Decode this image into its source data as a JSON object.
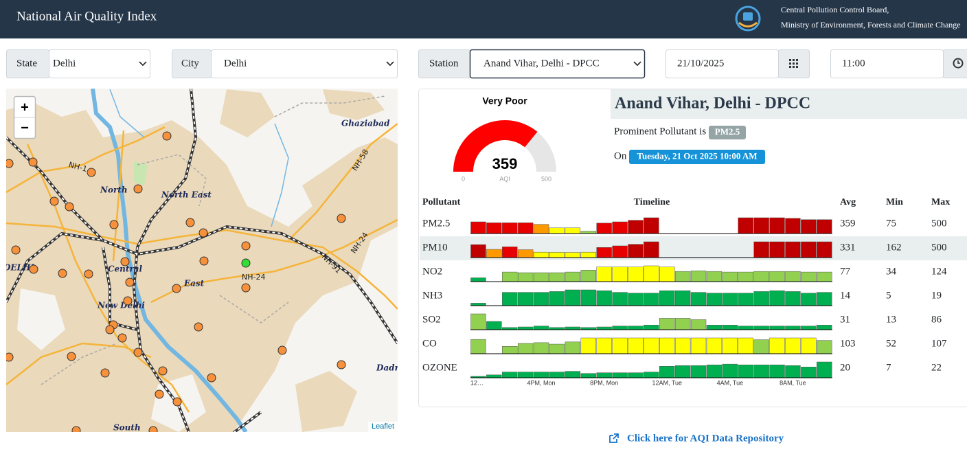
{
  "header": {
    "title": "National Air Quality Index",
    "org_line1": "Central Pollution Control Board,",
    "org_line2": "Ministry of Environment, Forests and Climate Change"
  },
  "filters": {
    "state_label": "State",
    "state": "Delhi",
    "city_label": "City",
    "city": "Delhi",
    "station_label": "Station",
    "station": "Anand Vihar, Delhi - DPCC",
    "date": "21/10/2025",
    "time": "11:00"
  },
  "map": {
    "zoom_in": "+",
    "zoom_out": "−",
    "attribution": "Leaflet",
    "labels": [
      "Ghaziabad",
      "North",
      "North East",
      "DELHI",
      "Central",
      "East",
      "New Delhi",
      "Dadri",
      "South",
      "NH-1",
      "NH-58",
      "NH-24",
      "NH-91",
      "NH-24"
    ]
  },
  "chart_data": {
    "type": "gauge",
    "title": "Very Poor",
    "value": 359,
    "label": "AQI",
    "ylim": [
      0,
      500
    ],
    "yticks": [
      0,
      500
    ],
    "color": "#ff0000",
    "track_color": "#e6e6e6"
  },
  "station": {
    "name": "Anand Vihar, Delhi - DPCC",
    "prominent_label": "Prominent Pollutant is",
    "prominent": "PM2.5",
    "on_label": "On",
    "datetime": "Tuesday, 21 Oct 2025 10:00 AM"
  },
  "table": {
    "headers": [
      "Pollutant",
      "Timeline",
      "Avg",
      "Min",
      "Max"
    ],
    "timeline_labels": [
      "12…",
      "4PM, Mon",
      "8PM, Mon",
      "12AM, Tue",
      "4AM, Tue",
      "8AM, Tue"
    ],
    "rows": [
      {
        "name": "PM2.5",
        "avg": 359,
        "min": 75,
        "max": 500,
        "values": [
          370,
          340,
          340,
          340,
          290,
          180,
          180,
          75,
          330,
          370,
          420,
          500,
          null,
          null,
          null,
          null,
          null,
          500,
          500,
          500,
          480,
          440,
          440
        ],
        "colors": [
          "#e60000",
          "#e60000",
          "#e60000",
          "#e60000",
          "#ff9900",
          "#ffff00",
          "#ffff00",
          "#92d050",
          "#e60000",
          "#e60000",
          "#c00000",
          "#c00000",
          null,
          null,
          null,
          null,
          null,
          "#c00000",
          "#c00000",
          "#c00000",
          "#c00000",
          "#c00000",
          "#c00000"
        ]
      },
      {
        "name": "PM10",
        "avg": 331,
        "min": 162,
        "max": 500,
        "values": [
          410,
          260,
          340,
          250,
          170,
          165,
          162,
          170,
          320,
          370,
          420,
          500,
          null,
          null,
          null,
          null,
          null,
          null,
          500,
          500,
          500,
          500,
          500
        ],
        "colors": [
          "#c00000",
          "#ff9900",
          "#e60000",
          "#ff9900",
          "#ffff00",
          "#ffff00",
          "#ffff00",
          "#ffff00",
          "#e60000",
          "#e60000",
          "#c00000",
          "#c00000",
          null,
          null,
          null,
          null,
          null,
          null,
          "#c00000",
          "#c00000",
          "#c00000",
          "#c00000",
          "#c00000"
        ]
      },
      {
        "name": "NO2",
        "avg": 77,
        "min": 34,
        "max": 124,
        "values": [
          30,
          null,
          75,
          70,
          70,
          70,
          75,
          90,
          115,
          115,
          115,
          124,
          115,
          80,
          85,
          80,
          75,
          75,
          80,
          80,
          80,
          75,
          75
        ],
        "colors": [
          "#00b050",
          null,
          "#92d050",
          "#92d050",
          "#92d050",
          "#92d050",
          "#92d050",
          "#92d050",
          "#ffff00",
          "#ffff00",
          "#ffff00",
          "#ffff00",
          "#ffff00",
          "#92d050",
          "#92d050",
          "#92d050",
          "#92d050",
          "#92d050",
          "#92d050",
          "#92d050",
          "#92d050",
          "#92d050",
          "#92d050"
        ]
      },
      {
        "name": "NH3",
        "avg": 14,
        "min": 5,
        "max": 19,
        "values": [
          3,
          null,
          16,
          16,
          16,
          17,
          19,
          19,
          18,
          16,
          15,
          15,
          18,
          18,
          16,
          15,
          15,
          15,
          17,
          18,
          17,
          15,
          16
        ],
        "colors": [
          "#00b050",
          null,
          "#00b050",
          "#00b050",
          "#00b050",
          "#00b050",
          "#00b050",
          "#00b050",
          "#00b050",
          "#00b050",
          "#00b050",
          "#00b050",
          "#00b050",
          "#00b050",
          "#00b050",
          "#00b050",
          "#00b050",
          "#00b050",
          "#00b050",
          "#00b050",
          "#00b050",
          "#00b050",
          "#00b050"
        ]
      },
      {
        "name": "SO2",
        "avg": 31,
        "min": 13,
        "max": 86,
        "values": [
          86,
          45,
          12,
          15,
          20,
          12,
          15,
          12,
          15,
          20,
          20,
          25,
          62,
          62,
          55,
          25,
          25,
          20,
          20,
          20,
          20,
          20,
          25
        ],
        "colors": [
          "#92d050",
          "#00b050",
          "#00b050",
          "#00b050",
          "#00b050",
          "#00b050",
          "#00b050",
          "#00b050",
          "#00b050",
          "#00b050",
          "#00b050",
          "#00b050",
          "#92d050",
          "#92d050",
          "#92d050",
          "#00b050",
          "#00b050",
          "#00b050",
          "#00b050",
          "#00b050",
          "#00b050",
          "#00b050",
          "#00b050"
        ]
      },
      {
        "name": "CO",
        "avg": 103,
        "min": 52,
        "max": 107,
        "values": [
          97,
          null,
          50,
          70,
          75,
          65,
          80,
          107,
          107,
          107,
          107,
          107,
          107,
          107,
          107,
          107,
          107,
          107,
          95,
          107,
          107,
          107,
          90
        ],
        "colors": [
          "#92d050",
          null,
          "#92d050",
          "#92d050",
          "#92d050",
          "#92d050",
          "#92d050",
          "#ffff00",
          "#ffff00",
          "#ffff00",
          "#ffff00",
          "#ffff00",
          "#ffff00",
          "#ffff00",
          "#ffff00",
          "#ffff00",
          "#ffff00",
          "#ffff00",
          "#92d050",
          "#ffff00",
          "#ffff00",
          "#ffff00",
          "#92d050"
        ]
      },
      {
        "name": "OZONE",
        "avg": 20,
        "min": 7,
        "max": 22,
        "values": [
          2,
          4,
          8,
          8,
          8,
          8,
          9,
          6,
          7,
          7,
          7,
          8,
          16,
          17,
          17,
          18,
          19,
          18,
          18,
          18,
          17,
          15,
          22
        ],
        "colors": [
          "#00b050",
          "#00b050",
          "#00b050",
          "#00b050",
          "#00b050",
          "#00b050",
          "#00b050",
          "#00b050",
          "#00b050",
          "#00b050",
          "#00b050",
          "#00b050",
          "#00b050",
          "#00b050",
          "#00b050",
          "#00b050",
          "#00b050",
          "#00b050",
          "#00b050",
          "#00b050",
          "#00b050",
          "#00b050",
          "#00b050"
        ]
      }
    ]
  },
  "footer": {
    "link": "Click here for AQI Data Repository"
  }
}
